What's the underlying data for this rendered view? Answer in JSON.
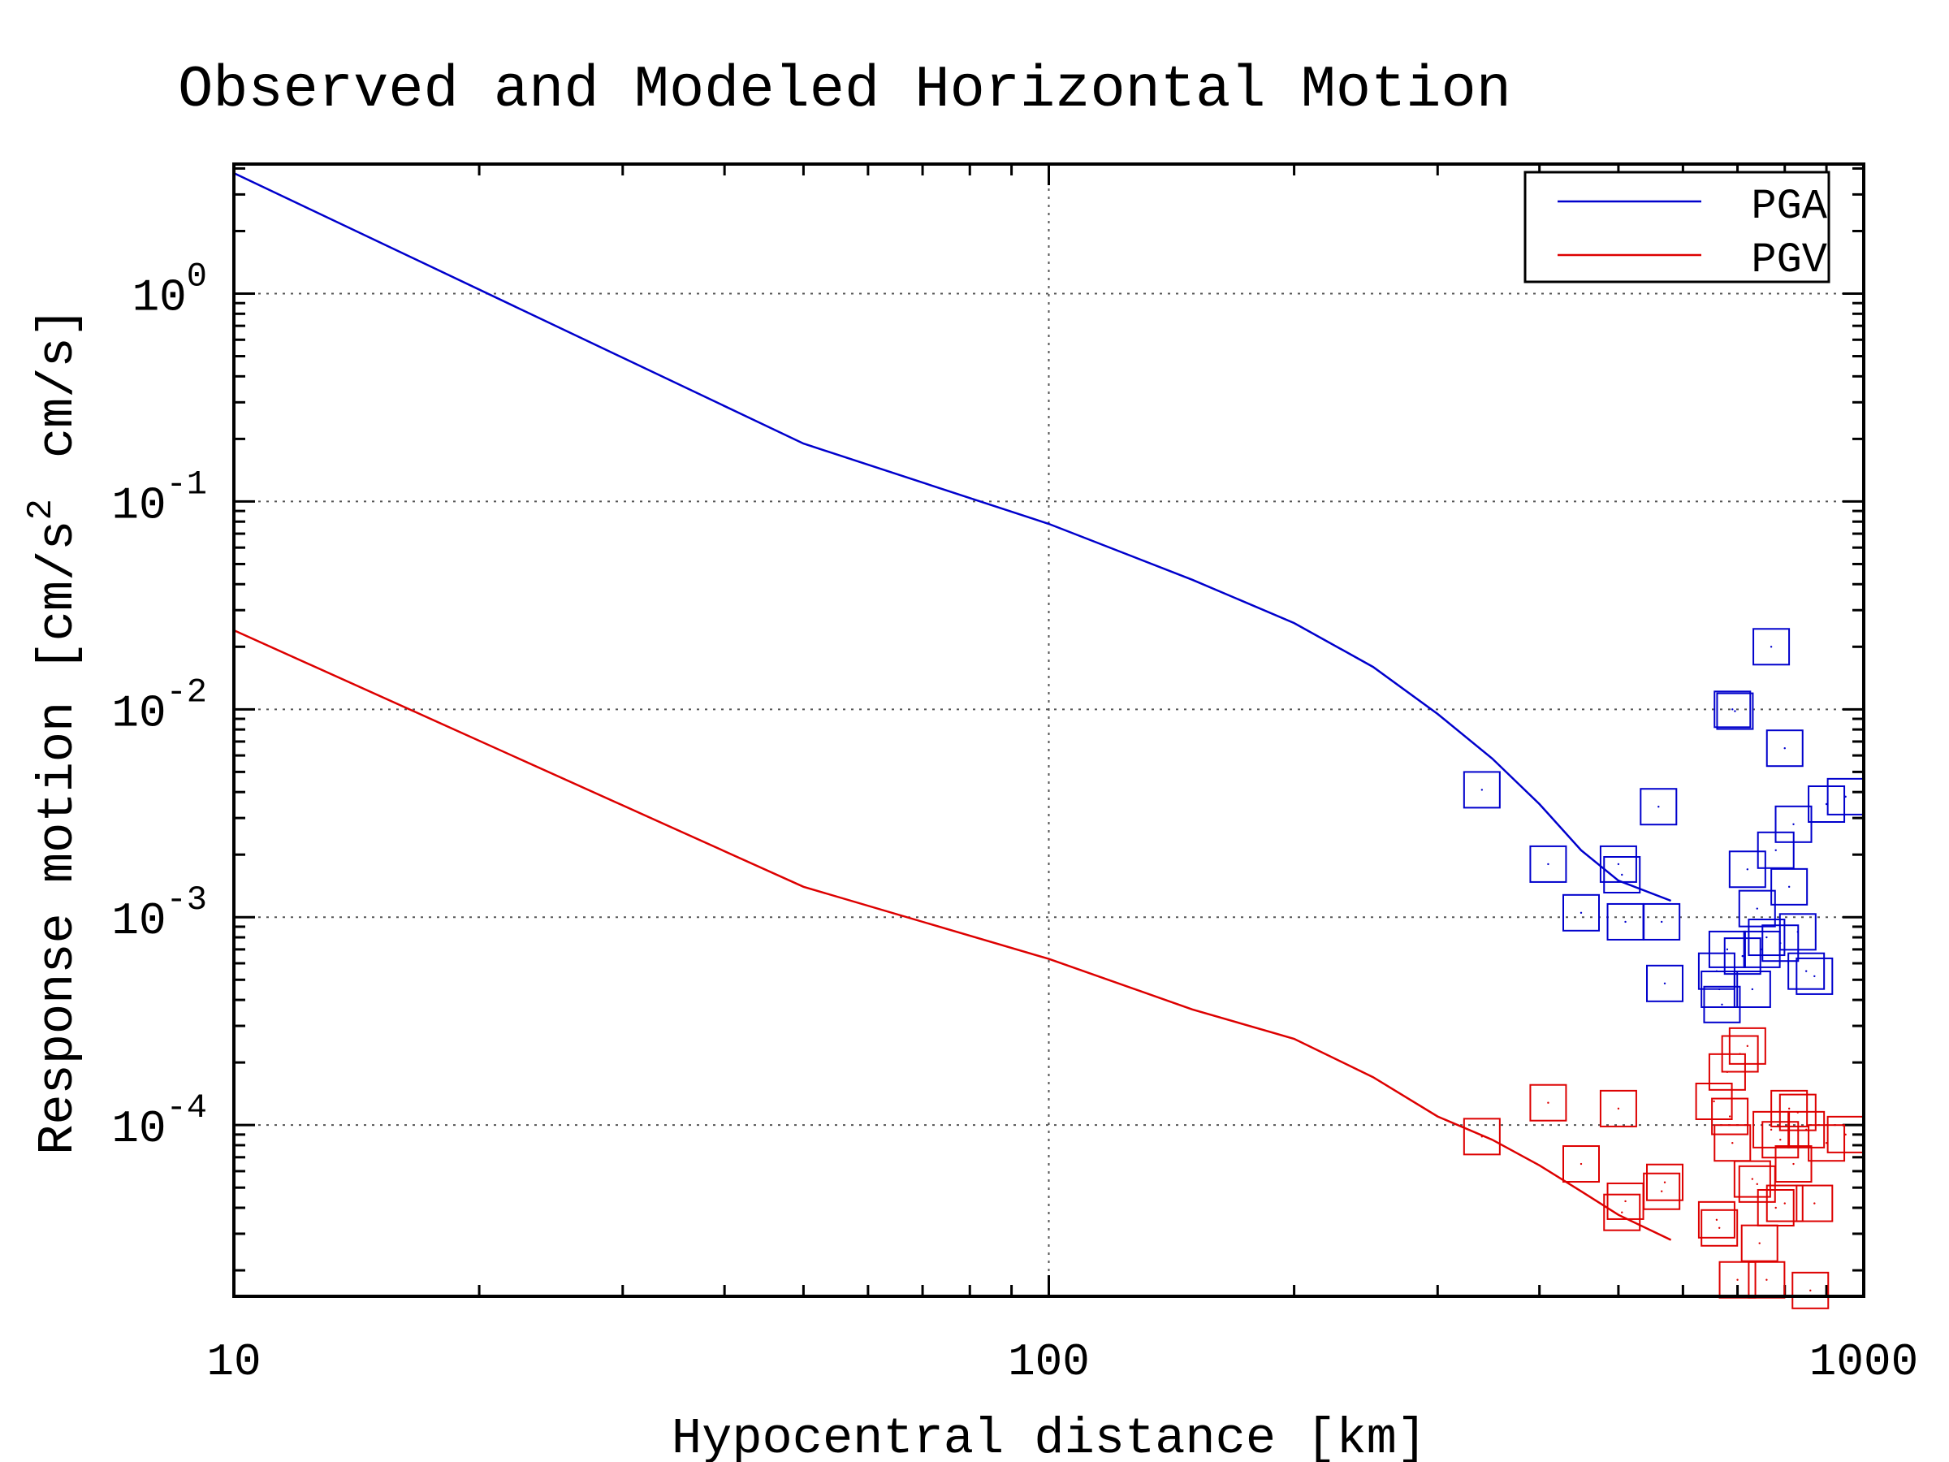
{
  "chart_data": {
    "type": "scatter",
    "title": "Observed and Modeled Horizontal Motion",
    "xlabel": "Hypocentral distance [km]",
    "ylabel_main": "Response motion",
    "ylabel_units_part1": "[cm/s",
    "ylabel_units_sup": "2",
    "ylabel_units_part2": "cm/s]",
    "x_scale": "log",
    "y_scale": "log",
    "xlim": [
      10,
      1000
    ],
    "ylim": [
      1.5e-05,
      4.2
    ],
    "x_ticks": [
      {
        "value": 10,
        "label": "10"
      },
      {
        "value": 100,
        "label": "100"
      },
      {
        "value": 1000,
        "label": "1000"
      }
    ],
    "y_ticks": [
      {
        "value": 1,
        "base": "10",
        "exp": "0"
      },
      {
        "value": 0.1,
        "base": "10",
        "exp": "-1"
      },
      {
        "value": 0.01,
        "base": "10",
        "exp": "-2"
      },
      {
        "value": 0.001,
        "base": "10",
        "exp": "-3"
      },
      {
        "value": 0.0001,
        "base": "10",
        "exp": "-4"
      }
    ],
    "grid": true,
    "legend_position": "top-right",
    "series": [
      {
        "name": "PGA",
        "color": "#0000cc",
        "model_line": [
          [
            10,
            3.8
          ],
          [
            50,
            0.19
          ],
          [
            100,
            0.078
          ],
          [
            150,
            0.042
          ],
          [
            200,
            0.026
          ],
          [
            250,
            0.016
          ],
          [
            300,
            0.0095
          ],
          [
            350,
            0.0058
          ],
          [
            400,
            0.0035
          ],
          [
            450,
            0.0021
          ],
          [
            500,
            0.0015
          ],
          [
            580,
            0.0012
          ]
        ],
        "observed": [
          [
            340,
            0.0041
          ],
          [
            410,
            0.0018
          ],
          [
            450,
            0.00105
          ],
          [
            500,
            0.0018
          ],
          [
            505,
            0.0016
          ],
          [
            510,
            0.00095
          ],
          [
            560,
            0.0034
          ],
          [
            565,
            0.00095
          ],
          [
            570,
            0.00048
          ],
          [
            660,
            0.00055
          ],
          [
            665,
            0.00045
          ],
          [
            670,
            0.00038
          ],
          [
            680,
            0.0007
          ],
          [
            690,
            0.01
          ],
          [
            695,
            0.0098
          ],
          [
            710,
            0.00065
          ],
          [
            720,
            0.0017
          ],
          [
            730,
            0.00045
          ],
          [
            740,
            0.0011
          ],
          [
            750,
            0.0007
          ],
          [
            760,
            0.0008
          ],
          [
            770,
            0.02
          ],
          [
            780,
            0.0021
          ],
          [
            790,
            0.00075
          ],
          [
            800,
            0.0065
          ],
          [
            810,
            0.0014
          ],
          [
            820,
            0.0028
          ],
          [
            830,
            0.00085
          ],
          [
            850,
            0.00055
          ],
          [
            870,
            0.00052
          ],
          [
            900,
            0.0035
          ],
          [
            950,
            0.0038
          ]
        ]
      },
      {
        "name": "PGV",
        "color": "#dd0000",
        "model_line": [
          [
            10,
            0.024
          ],
          [
            50,
            0.0014
          ],
          [
            100,
            0.00063
          ],
          [
            150,
            0.00036
          ],
          [
            200,
            0.00026
          ],
          [
            250,
            0.00017
          ],
          [
            300,
            0.00011
          ],
          [
            350,
            8.5e-05
          ],
          [
            400,
            6.4e-05
          ],
          [
            450,
            4.8e-05
          ],
          [
            500,
            3.7e-05
          ],
          [
            580,
            2.8e-05
          ]
        ],
        "observed": [
          [
            340,
            8.8e-05
          ],
          [
            410,
            0.000128
          ],
          [
            450,
            6.5e-05
          ],
          [
            500,
            0.00012
          ],
          [
            505,
            3.8e-05
          ],
          [
            510,
            4.3e-05
          ],
          [
            565,
            4.8e-05
          ],
          [
            570,
            5.3e-05
          ],
          [
            655,
            0.00013
          ],
          [
            660,
            3.5e-05
          ],
          [
            665,
            3.2e-05
          ],
          [
            680,
            0.00018
          ],
          [
            685,
            0.00011
          ],
          [
            690,
            8.2e-05
          ],
          [
            700,
            1.8e-05
          ],
          [
            705,
            0.00022
          ],
          [
            720,
            0.00024
          ],
          [
            730,
            5.5e-05
          ],
          [
            740,
            5.2e-05
          ],
          [
            745,
            2.7e-05
          ],
          [
            760,
            1.8e-05
          ],
          [
            770,
            9.5e-05
          ],
          [
            780,
            4e-05
          ],
          [
            790,
            8.5e-05
          ],
          [
            800,
            4.2e-05
          ],
          [
            810,
            0.00012
          ],
          [
            820,
            6.5e-05
          ],
          [
            830,
            0.000115
          ],
          [
            850,
            9.5e-05
          ],
          [
            860,
            1.6e-05
          ],
          [
            870,
            4.2e-05
          ],
          [
            900,
            8.2e-05
          ],
          [
            950,
            9e-05
          ]
        ]
      }
    ]
  }
}
